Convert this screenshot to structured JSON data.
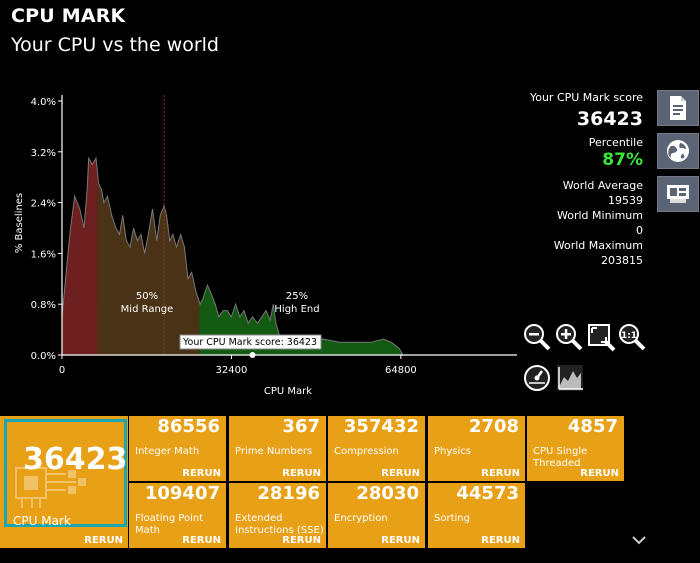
{
  "header": {
    "title": "CPU MARK",
    "subtitle": "Your CPU vs the world"
  },
  "chart_data": {
    "type": "area",
    "ylabel": "% Baselines",
    "xlabel": "CPU Mark",
    "y_ticks": [
      "4.0%",
      "3.2%",
      "2.4%",
      "1.6%",
      "0.8%",
      "0.0%"
    ],
    "x_ticks": [
      "0",
      "32400",
      "64800"
    ],
    "ylim": [
      0,
      4.0
    ],
    "xlim": [
      0,
      87000
    ],
    "annotations": [
      {
        "pct": "50%",
        "label": "Mid Range"
      },
      {
        "pct": "25%",
        "label": "High End"
      }
    ],
    "marker_label": "Your CPU Mark score: 36423",
    "marker_value": 36423,
    "median_value": 19539,
    "points": [
      [
        0,
        0.6
      ],
      [
        1500,
        1.9
      ],
      [
        2400,
        2.5
      ],
      [
        3400,
        2.3
      ],
      [
        4200,
        2.0
      ],
      [
        4800,
        2.6
      ],
      [
        5100,
        3.1
      ],
      [
        5800,
        3.0
      ],
      [
        6500,
        3.1
      ],
      [
        7000,
        2.7
      ],
      [
        7600,
        2.6
      ],
      [
        8000,
        2.4
      ],
      [
        8700,
        2.5
      ],
      [
        9500,
        2.2
      ],
      [
        10300,
        2.0
      ],
      [
        11000,
        1.9
      ],
      [
        11600,
        2.2
      ],
      [
        12300,
        1.8
      ],
      [
        13000,
        1.7
      ],
      [
        13700,
        2.0
      ],
      [
        14400,
        1.8
      ],
      [
        15100,
        1.9
      ],
      [
        15800,
        1.6
      ],
      [
        16500,
        1.9
      ],
      [
        17300,
        2.3
      ],
      [
        18100,
        1.8
      ],
      [
        18800,
        2.2
      ],
      [
        19500,
        2.35
      ],
      [
        20000,
        2.2
      ],
      [
        20600,
        1.8
      ],
      [
        21200,
        1.9
      ],
      [
        21900,
        1.7
      ],
      [
        22700,
        1.9
      ],
      [
        23400,
        1.7
      ],
      [
        24100,
        1.2
      ],
      [
        24800,
        1.3
      ],
      [
        25600,
        1.0
      ],
      [
        26400,
        0.8
      ],
      [
        27000,
        0.9
      ],
      [
        27800,
        1.1
      ],
      [
        28600,
        0.95
      ],
      [
        29300,
        0.8
      ],
      [
        30000,
        0.6
      ],
      [
        30800,
        0.7
      ],
      [
        31600,
        0.7
      ],
      [
        32400,
        0.6
      ],
      [
        33200,
        0.8
      ],
      [
        34000,
        0.6
      ],
      [
        34800,
        0.7
      ],
      [
        35600,
        0.5
      ],
      [
        36400,
        0.6
      ],
      [
        37400,
        0.5
      ],
      [
        38200,
        0.6
      ],
      [
        39000,
        0.7
      ],
      [
        39800,
        0.55
      ],
      [
        40400,
        0.8
      ],
      [
        40900,
        0.5
      ],
      [
        41600,
        0.3
      ],
      [
        43000,
        0.3
      ],
      [
        45000,
        0.3
      ],
      [
        47000,
        0.28
      ],
      [
        50000,
        0.25
      ],
      [
        53000,
        0.2
      ],
      [
        56000,
        0.2
      ],
      [
        59000,
        0.2
      ],
      [
        61500,
        0.25
      ],
      [
        63000,
        0.2
      ],
      [
        64500,
        0.1
      ],
      [
        65200,
        0.0
      ]
    ],
    "segments": [
      {
        "from": 0,
        "to": 6800,
        "color": "#6e1f1f"
      },
      {
        "from": 6800,
        "to": 26300,
        "color": "#4a3216"
      },
      {
        "from": 26300,
        "to": 65200,
        "color": "#135a13"
      }
    ]
  },
  "stats": {
    "score_label": "Your CPU Mark score",
    "score": "36423",
    "percentile_label": "Percentile",
    "percentile": "87%",
    "avg_label": "World Average",
    "avg": "19539",
    "min_label": "World Minimum",
    "min": "0",
    "max_label": "World Maximum",
    "max": "203815"
  },
  "main_tile": {
    "value": "36423",
    "name": "CPU Mark",
    "rerun": "RERUN"
  },
  "tiles": [
    {
      "value": "86556",
      "name": "Integer Math",
      "rerun": "RERUN"
    },
    {
      "value": "367",
      "name": "Prime Numbers",
      "rerun": "RERUN"
    },
    {
      "value": "357432",
      "name": "Compression",
      "rerun": "RERUN"
    },
    {
      "value": "2708",
      "name": "Physics",
      "rerun": "RERUN"
    },
    {
      "value": "4857",
      "name": "CPU Single Threaded",
      "rerun": "RERUN"
    },
    {
      "value": "109407",
      "name": "Floating Point Math",
      "rerun": "RERUN"
    },
    {
      "value": "28196",
      "name": "Extended Instructions (SSE)",
      "rerun": "RERUN"
    },
    {
      "value": "28030",
      "name": "Encryption",
      "rerun": "RERUN"
    },
    {
      "value": "44573",
      "name": "Sorting",
      "rerun": "RERUN"
    }
  ],
  "icons": {
    "side": [
      "report-icon",
      "globe-icon",
      "hardware-card-icon"
    ],
    "tools": [
      "zoom-out-icon",
      "zoom-in-icon",
      "zoom-fit-icon",
      "zoom-actual-icon",
      "gauge-icon",
      "chart-icon"
    ],
    "scroll": "chevron-down-icon"
  },
  "colors": {
    "tile": "#e8a016",
    "tile_border": "#18a7b5",
    "percentile": "#39e639"
  }
}
